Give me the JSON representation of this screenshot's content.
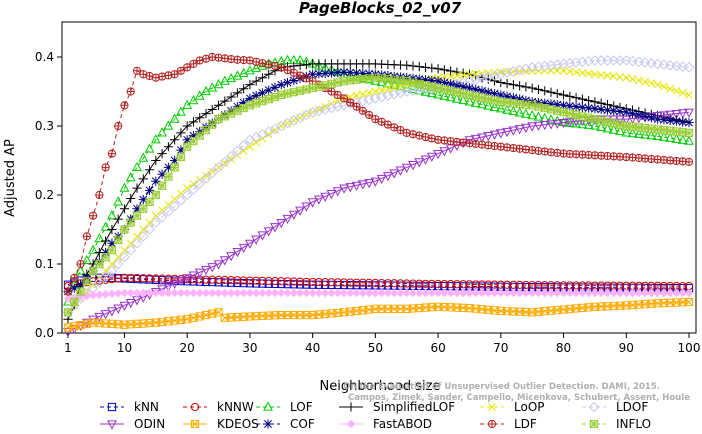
{
  "chart_data": {
    "type": "line",
    "title": "PageBlocks_02_v07",
    "xlabel": "Neighborhood size",
    "ylabel": "Adjusted AP",
    "xlim": [
      1,
      100
    ],
    "ylim": [
      0,
      0.43
    ],
    "xticks": [
      1,
      10,
      20,
      30,
      40,
      50,
      60,
      70,
      80,
      90,
      100
    ],
    "yticks": [
      0.0,
      0.1,
      0.2,
      0.3,
      0.4
    ],
    "ytick_labels": [
      "0.0",
      "0.1",
      "0.2",
      "0.3",
      "0.4"
    ],
    "grid": false,
    "legend_position": "bottom",
    "credit_lines": [
      "Campos, Zimek, Sander, Campello, Micenkova, Schubert, Assent, Houle",
      "On the Evaluation of Unsupervised Outlier Detection. DAMI, 2015."
    ],
    "series": [
      {
        "name": "kNN",
        "color": "#0000cc",
        "marker": "square",
        "dash": "dash",
        "points": [
          [
            1,
            0.07
          ],
          [
            3,
            0.076
          ],
          [
            5,
            0.08
          ],
          [
            8,
            0.08
          ],
          [
            10,
            0.079
          ],
          [
            15,
            0.077
          ],
          [
            20,
            0.075
          ],
          [
            30,
            0.072
          ],
          [
            40,
            0.07
          ],
          [
            60,
            0.068
          ],
          [
            80,
            0.066
          ],
          [
            100,
            0.065
          ]
        ]
      },
      {
        "name": "kNNW",
        "color": "#cc0000",
        "marker": "circle",
        "dash": "dash",
        "points": [
          [
            1,
            0.068
          ],
          [
            3,
            0.072
          ],
          [
            5,
            0.075
          ],
          [
            8,
            0.078
          ],
          [
            10,
            0.08
          ],
          [
            15,
            0.079
          ],
          [
            20,
            0.078
          ],
          [
            30,
            0.076
          ],
          [
            40,
            0.074
          ],
          [
            60,
            0.071
          ],
          [
            80,
            0.069
          ],
          [
            100,
            0.068
          ]
        ]
      },
      {
        "name": "LOF",
        "color": "#00cc00",
        "marker": "triangle",
        "dash": "dash",
        "points": [
          [
            1,
            0.045
          ],
          [
            2,
            0.07
          ],
          [
            3,
            0.09
          ],
          [
            5,
            0.12
          ],
          [
            8,
            0.17
          ],
          [
            10,
            0.21
          ],
          [
            12,
            0.24
          ],
          [
            15,
            0.28
          ],
          [
            18,
            0.31
          ],
          [
            20,
            0.33
          ],
          [
            23,
            0.35
          ],
          [
            26,
            0.365
          ],
          [
            30,
            0.38
          ],
          [
            33,
            0.39
          ],
          [
            36,
            0.395
          ],
          [
            38,
            0.395
          ],
          [
            40,
            0.39
          ],
          [
            45,
            0.375
          ],
          [
            50,
            0.365
          ],
          [
            55,
            0.355
          ],
          [
            60,
            0.345
          ],
          [
            65,
            0.335
          ],
          [
            70,
            0.325
          ],
          [
            75,
            0.315
          ],
          [
            80,
            0.305
          ],
          [
            85,
            0.3
          ],
          [
            90,
            0.29
          ],
          [
            95,
            0.285
          ],
          [
            100,
            0.278
          ]
        ]
      },
      {
        "name": "SimplifiedLOF",
        "color": "#000000",
        "marker": "plus",
        "dash": "solid",
        "points": [
          [
            1,
            0.02
          ],
          [
            2,
            0.04
          ],
          [
            3,
            0.07
          ],
          [
            5,
            0.1
          ],
          [
            8,
            0.15
          ],
          [
            10,
            0.18
          ],
          [
            12,
            0.21
          ],
          [
            15,
            0.25
          ],
          [
            18,
            0.28
          ],
          [
            20,
            0.3
          ],
          [
            25,
            0.33
          ],
          [
            30,
            0.36
          ],
          [
            35,
            0.385
          ],
          [
            40,
            0.39
          ],
          [
            45,
            0.39
          ],
          [
            50,
            0.39
          ],
          [
            55,
            0.388
          ],
          [
            60,
            0.383
          ],
          [
            65,
            0.375
          ],
          [
            70,
            0.363
          ],
          [
            75,
            0.355
          ],
          [
            80,
            0.345
          ],
          [
            85,
            0.335
          ],
          [
            90,
            0.325
          ],
          [
            95,
            0.315
          ],
          [
            100,
            0.305
          ]
        ]
      },
      {
        "name": "LoOP",
        "color": "#e6e600",
        "marker": "x",
        "dash": "dash",
        "points": [
          [
            1,
            0.03
          ],
          [
            3,
            0.05
          ],
          [
            5,
            0.07
          ],
          [
            8,
            0.1
          ],
          [
            10,
            0.12
          ],
          [
            12,
            0.14
          ],
          [
            15,
            0.17
          ],
          [
            20,
            0.21
          ],
          [
            25,
            0.24
          ],
          [
            30,
            0.27
          ],
          [
            35,
            0.3
          ],
          [
            40,
            0.32
          ],
          [
            45,
            0.34
          ],
          [
            50,
            0.35
          ],
          [
            55,
            0.36
          ],
          [
            60,
            0.37
          ],
          [
            65,
            0.375
          ],
          [
            70,
            0.378
          ],
          [
            75,
            0.38
          ],
          [
            80,
            0.38
          ],
          [
            85,
            0.375
          ],
          [
            90,
            0.37
          ],
          [
            95,
            0.36
          ],
          [
            100,
            0.345
          ]
        ]
      },
      {
        "name": "LDOF",
        "color": "#c8c8f0",
        "marker": "diamond",
        "dash": "dash",
        "points": [
          [
            1,
            0.03
          ],
          [
            3,
            0.05
          ],
          [
            5,
            0.065
          ],
          [
            8,
            0.09
          ],
          [
            10,
            0.11
          ],
          [
            15,
            0.16
          ],
          [
            20,
            0.2
          ],
          [
            25,
            0.24
          ],
          [
            30,
            0.28
          ],
          [
            35,
            0.3
          ],
          [
            40,
            0.32
          ],
          [
            45,
            0.33
          ],
          [
            50,
            0.34
          ],
          [
            55,
            0.35
          ],
          [
            60,
            0.355
          ],
          [
            65,
            0.365
          ],
          [
            70,
            0.375
          ],
          [
            75,
            0.385
          ],
          [
            80,
            0.39
          ],
          [
            85,
            0.395
          ],
          [
            90,
            0.395
          ],
          [
            95,
            0.39
          ],
          [
            100,
            0.385
          ]
        ]
      },
      {
        "name": "ODIN",
        "color": "#9933cc",
        "marker": "triangle-down",
        "dash": "solid",
        "points": [
          [
            1,
            0.002
          ],
          [
            5,
            0.02
          ],
          [
            10,
            0.04
          ],
          [
            15,
            0.06
          ],
          [
            20,
            0.08
          ],
          [
            25,
            0.1
          ],
          [
            30,
            0.13
          ],
          [
            35,
            0.16
          ],
          [
            40,
            0.19
          ],
          [
            45,
            0.21
          ],
          [
            50,
            0.22
          ],
          [
            55,
            0.24
          ],
          [
            60,
            0.26
          ],
          [
            65,
            0.28
          ],
          [
            70,
            0.29
          ],
          [
            75,
            0.3
          ],
          [
            80,
            0.305
          ],
          [
            85,
            0.31
          ],
          [
            90,
            0.31
          ],
          [
            95,
            0.315
          ],
          [
            100,
            0.32
          ]
        ]
      },
      {
        "name": "KDEOS",
        "color": "#ffaa00",
        "marker": "square-x",
        "dash": "solid",
        "points": [
          [
            1,
            0.008
          ],
          [
            5,
            0.015
          ],
          [
            10,
            0.012
          ],
          [
            15,
            0.015
          ],
          [
            20,
            0.02
          ],
          [
            25,
            0.03
          ],
          [
            26,
            0.022
          ],
          [
            30,
            0.024
          ],
          [
            35,
            0.026
          ],
          [
            40,
            0.026
          ],
          [
            45,
            0.03
          ],
          [
            50,
            0.035
          ],
          [
            55,
            0.035
          ],
          [
            60,
            0.038
          ],
          [
            65,
            0.036
          ],
          [
            70,
            0.032
          ],
          [
            75,
            0.03
          ],
          [
            80,
            0.034
          ],
          [
            85,
            0.038
          ],
          [
            90,
            0.04
          ],
          [
            95,
            0.043
          ],
          [
            100,
            0.045
          ]
        ]
      },
      {
        "name": "COF",
        "color": "#000080",
        "marker": "asterisk",
        "dash": "dash",
        "points": [
          [
            1,
            0.06
          ],
          [
            2,
            0.065
          ],
          [
            3,
            0.07
          ],
          [
            5,
            0.09
          ],
          [
            8,
            0.13
          ],
          [
            10,
            0.15
          ],
          [
            12,
            0.18
          ],
          [
            15,
            0.22
          ],
          [
            18,
            0.25
          ],
          [
            20,
            0.28
          ],
          [
            25,
            0.31
          ],
          [
            30,
            0.34
          ],
          [
            35,
            0.36
          ],
          [
            40,
            0.375
          ],
          [
            45,
            0.378
          ],
          [
            50,
            0.375
          ],
          [
            55,
            0.37
          ],
          [
            60,
            0.365
          ],
          [
            65,
            0.355
          ],
          [
            70,
            0.345
          ],
          [
            75,
            0.335
          ],
          [
            80,
            0.33
          ],
          [
            85,
            0.325
          ],
          [
            90,
            0.32
          ],
          [
            95,
            0.31
          ],
          [
            100,
            0.305
          ]
        ]
      },
      {
        "name": "FastABOD",
        "color": "#ffb3ff",
        "marker": "diamond-filled",
        "dash": "solid",
        "points": [
          [
            1,
            0.05
          ],
          [
            5,
            0.055
          ],
          [
            10,
            0.058
          ],
          [
            20,
            0.058
          ],
          [
            30,
            0.058
          ],
          [
            40,
            0.058
          ],
          [
            50,
            0.058
          ],
          [
            60,
            0.058
          ],
          [
            70,
            0.058
          ],
          [
            80,
            0.058
          ],
          [
            90,
            0.058
          ],
          [
            100,
            0.058
          ]
        ]
      },
      {
        "name": "LDF",
        "color": "#b22222",
        "marker": "circle-plus",
        "dash": "dash",
        "points": [
          [
            1,
            0.06
          ],
          [
            2,
            0.08
          ],
          [
            3,
            0.1
          ],
          [
            4,
            0.14
          ],
          [
            5,
            0.17
          ],
          [
            6,
            0.2
          ],
          [
            7,
            0.24
          ],
          [
            8,
            0.26
          ],
          [
            9,
            0.3
          ],
          [
            10,
            0.33
          ],
          [
            11,
            0.35
          ],
          [
            12,
            0.38
          ],
          [
            13,
            0.375
          ],
          [
            15,
            0.37
          ],
          [
            18,
            0.375
          ],
          [
            20,
            0.385
          ],
          [
            22,
            0.395
          ],
          [
            24,
            0.4
          ],
          [
            26,
            0.398
          ],
          [
            28,
            0.396
          ],
          [
            30,
            0.395
          ],
          [
            35,
            0.385
          ],
          [
            40,
            0.365
          ],
          [
            45,
            0.34
          ],
          [
            50,
            0.31
          ],
          [
            55,
            0.29
          ],
          [
            60,
            0.28
          ],
          [
            70,
            0.27
          ],
          [
            80,
            0.26
          ],
          [
            90,
            0.255
          ],
          [
            100,
            0.248
          ]
        ]
      },
      {
        "name": "INFLO",
        "color": "#99cc33",
        "marker": "square-plus",
        "dash": "dash",
        "points": [
          [
            1,
            0.03
          ],
          [
            3,
            0.06
          ],
          [
            5,
            0.09
          ],
          [
            8,
            0.12
          ],
          [
            10,
            0.15
          ],
          [
            12,
            0.17
          ],
          [
            15,
            0.2
          ],
          [
            18,
            0.24
          ],
          [
            20,
            0.27
          ],
          [
            25,
            0.31
          ],
          [
            30,
            0.33
          ],
          [
            35,
            0.345
          ],
          [
            40,
            0.355
          ],
          [
            45,
            0.365
          ],
          [
            50,
            0.37
          ],
          [
            55,
            0.365
          ],
          [
            60,
            0.355
          ],
          [
            65,
            0.345
          ],
          [
            70,
            0.335
          ],
          [
            75,
            0.33
          ],
          [
            80,
            0.32
          ],
          [
            85,
            0.31
          ],
          [
            90,
            0.3
          ],
          [
            95,
            0.295
          ],
          [
            100,
            0.29
          ]
        ]
      }
    ],
    "legend_order": [
      "kNN",
      "kNNW",
      "LOF",
      "SimplifiedLOF",
      "LoOP",
      "LDOF",
      "ODIN",
      "KDEOS",
      "COF",
      "FastABOD",
      "LDF",
      "INFLO"
    ]
  }
}
